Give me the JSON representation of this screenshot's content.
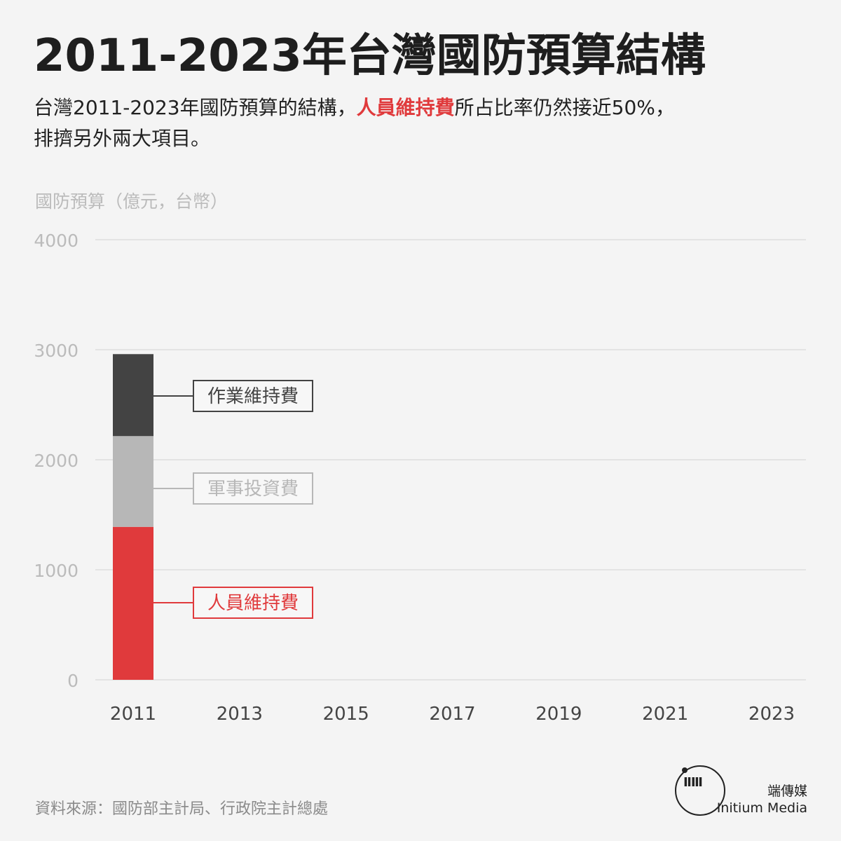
{
  "title": "2011-2023年台灣國防預算結構",
  "subtitle": {
    "part1": "台灣2011-2023年國防預算的結構，",
    "highlight": "人員維持費",
    "part2": "所占比率仍然接近50%，",
    "line2": "排擠另外兩大項目。"
  },
  "source": "資料來源：國防部主計局、行政院主計總處",
  "brand": {
    "logo_icon": "initium-logo-icon",
    "logo_glyph": "ⅡⅢ",
    "name_cn": "端傳媒",
    "name_en": "Initium Media"
  },
  "colors": {
    "personnel": "#e03a3c",
    "investment": "#b7b7b7",
    "operations": "#434343",
    "grid": "#dddddd",
    "axis_text": "#bbbbbb",
    "tick_text": "#444444"
  },
  "chart_data": {
    "type": "bar",
    "stacked": true,
    "ylabel": "國防預算（億元，台幣）",
    "ylim": [
      0,
      4000
    ],
    "yticks": [
      0,
      1000,
      2000,
      3000,
      4000
    ],
    "x_tick_labels": [
      "2011",
      "2013",
      "2015",
      "2017",
      "2019",
      "2021",
      "2023"
    ],
    "categories": [
      "2011"
    ],
    "series": [
      {
        "name": "人員維持費",
        "values": [
          1390
        ]
      },
      {
        "name": "軍事投資費",
        "values": [
          825
        ]
      },
      {
        "name": "作業維持費",
        "values": [
          745
        ]
      }
    ],
    "grid": true,
    "legend": "inline-labels"
  }
}
